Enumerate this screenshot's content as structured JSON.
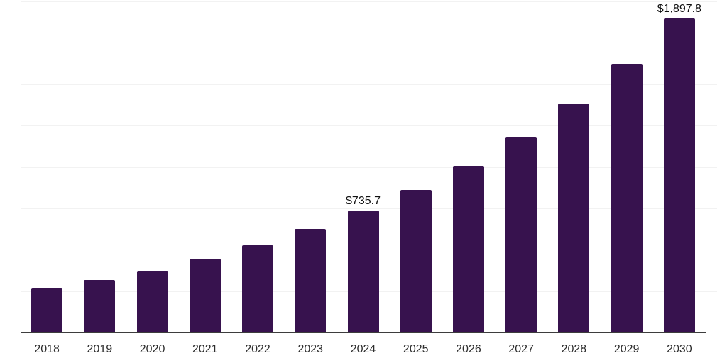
{
  "chart_data": {
    "type": "bar",
    "title": "",
    "xlabel": "",
    "ylabel": "",
    "categories": [
      "2018",
      "2019",
      "2020",
      "2021",
      "2022",
      "2023",
      "2024",
      "2025",
      "2026",
      "2027",
      "2028",
      "2029",
      "2030"
    ],
    "values": [
      271,
      317,
      374,
      445,
      527,
      625,
      735.7,
      860,
      1006,
      1181,
      1384,
      1623,
      1897.8
    ],
    "value_labels": {
      "2024": "$735.7",
      "2030": "$1,897.8"
    },
    "ylim": [
      0,
      2000
    ],
    "gridline_step": 250,
    "grid": "horizontal",
    "legend_position": "none"
  },
  "style": {
    "bar_color": "#37124E",
    "axis_line_color": "#3d3d3d",
    "gridline_color": "#f2f2f2",
    "tick_label_color": "#2d2d2d",
    "value_label_color": "#111111",
    "background_color": "#ffffff"
  }
}
